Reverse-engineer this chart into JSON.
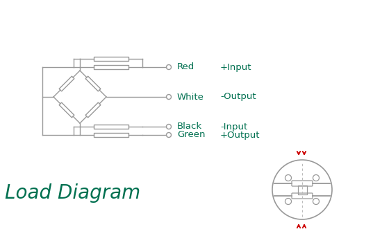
{
  "bg_color": "#ffffff",
  "diagram_color": "#999999",
  "green_color": "#007050",
  "red_color": "#cc0000",
  "wire_labels": [
    "Red",
    "White",
    "Black",
    "Green"
  ],
  "signal_labels": [
    "+Input",
    "-Output",
    "-Input",
    "+Output"
  ],
  "title": "Load Diagram",
  "title_color": "#007050",
  "title_fontsize": 20,
  "fig_w": 5.37,
  "fig_h": 3.54,
  "dpi": 100
}
